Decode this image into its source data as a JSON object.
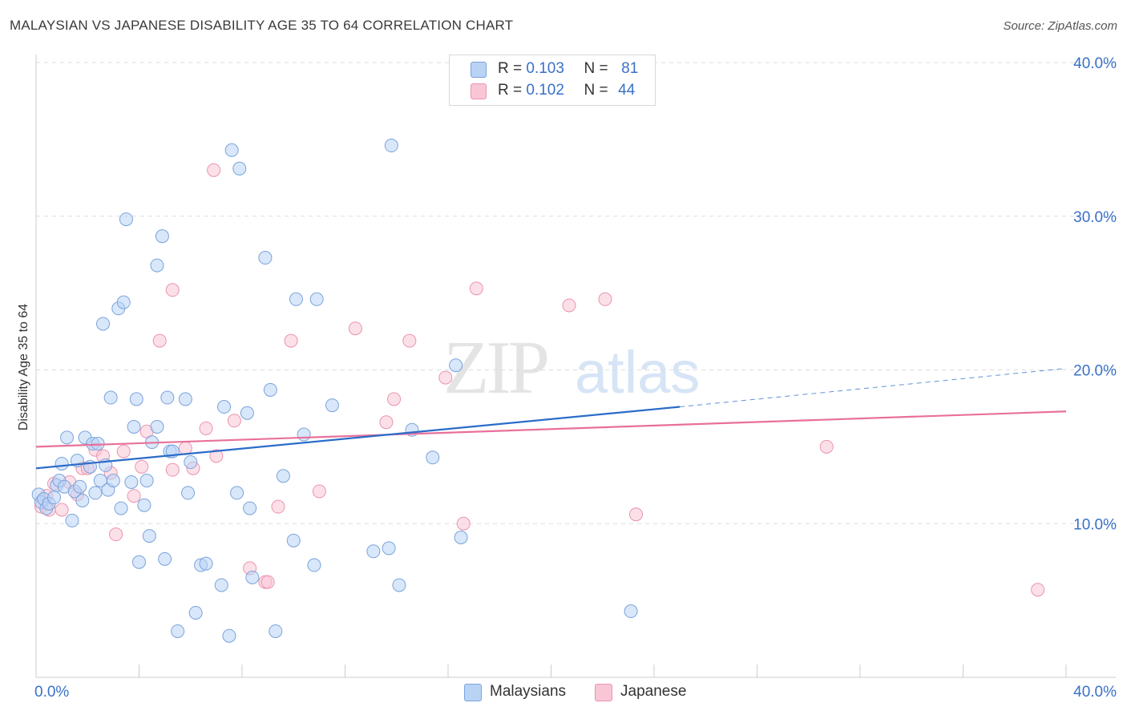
{
  "title": "MALAYSIAN VS JAPANESE DISABILITY AGE 35 TO 64 CORRELATION CHART",
  "source": "Source: ZipAtlas.com",
  "watermark": {
    "zip": "ZIP",
    "atlas": "atlas"
  },
  "legend": {
    "series1": {
      "r_label": "R =",
      "r_value": "0.103",
      "n_label": "N =",
      "n_value": "81"
    },
    "series2": {
      "r_label": "R =",
      "r_value": "0.102",
      "n_label": "N =",
      "n_value": "44"
    }
  },
  "colors": {
    "malaysians_fill": "#b9d3f5",
    "malaysians_stroke": "#7aa3dc",
    "malaysians_line": "#2b6cc9",
    "japanese_fill": "#f9c6d5",
    "japanese_stroke": "#eb93ae",
    "japanese_line": "#e8709a",
    "tick_label": "#3a70c8",
    "grid": "#dddddd"
  },
  "chart_data": {
    "type": "scatter",
    "title": "MALAYSIAN VS JAPANESE DISABILITY AGE 35 TO 64 CORRELATION CHART",
    "xlabel": "",
    "ylabel": "Disability Age 35 to 64",
    "xlim": [
      0,
      40
    ],
    "ylim": [
      0,
      40
    ],
    "x_tick_labels": [
      "0.0%",
      "40.0%"
    ],
    "y_ticks": [
      10,
      20,
      30,
      40
    ],
    "y_tick_labels": [
      "10.0%",
      "20.0%",
      "30.0%",
      "40.0%"
    ],
    "grid": true,
    "legend_position": "top-center",
    "series": [
      {
        "name": "Malaysians",
        "R": 0.103,
        "N": 81,
        "trend": {
          "x0": 0,
          "y0": 13.6,
          "x1": 25,
          "y1": 17.6,
          "dashed_to_x": 40,
          "dashed_to_y": 20.1
        },
        "points": [
          [
            0.1,
            11.9
          ],
          [
            0.2,
            11.4
          ],
          [
            0.3,
            11.6
          ],
          [
            0.4,
            11.0
          ],
          [
            0.5,
            11.3
          ],
          [
            0.7,
            11.7
          ],
          [
            0.8,
            12.5
          ],
          [
            0.9,
            12.8
          ],
          [
            1.0,
            13.9
          ],
          [
            1.1,
            12.4
          ],
          [
            1.2,
            15.6
          ],
          [
            1.4,
            10.2
          ],
          [
            1.5,
            12.1
          ],
          [
            1.6,
            14.1
          ],
          [
            1.7,
            12.4
          ],
          [
            1.8,
            11.5
          ],
          [
            1.9,
            15.6
          ],
          [
            2.1,
            13.7
          ],
          [
            2.2,
            15.2
          ],
          [
            2.3,
            12.0
          ],
          [
            2.4,
            15.2
          ],
          [
            2.5,
            12.8
          ],
          [
            2.6,
            23.0
          ],
          [
            2.7,
            13.8
          ],
          [
            2.8,
            12.2
          ],
          [
            2.9,
            18.2
          ],
          [
            3.0,
            12.8
          ],
          [
            3.2,
            24.0
          ],
          [
            3.3,
            11.0
          ],
          [
            3.4,
            24.4
          ],
          [
            3.5,
            29.8
          ],
          [
            3.7,
            12.7
          ],
          [
            3.8,
            16.3
          ],
          [
            3.9,
            18.1
          ],
          [
            4.0,
            7.5
          ],
          [
            4.2,
            11.2
          ],
          [
            4.3,
            12.8
          ],
          [
            4.4,
            9.2
          ],
          [
            4.5,
            15.3
          ],
          [
            4.7,
            16.3
          ],
          [
            4.7,
            26.8
          ],
          [
            4.9,
            28.7
          ],
          [
            5.0,
            7.7
          ],
          [
            5.1,
            18.2
          ],
          [
            5.2,
            14.7
          ],
          [
            5.3,
            14.7
          ],
          [
            5.5,
            3.0
          ],
          [
            5.8,
            18.1
          ],
          [
            5.9,
            12.0
          ],
          [
            6.0,
            14.0
          ],
          [
            6.2,
            4.2
          ],
          [
            6.4,
            7.3
          ],
          [
            6.6,
            7.4
          ],
          [
            7.2,
            6.0
          ],
          [
            7.3,
            17.6
          ],
          [
            7.5,
            2.7
          ],
          [
            7.6,
            34.3
          ],
          [
            7.8,
            12.0
          ],
          [
            7.9,
            33.1
          ],
          [
            8.2,
            17.2
          ],
          [
            8.3,
            11.0
          ],
          [
            8.4,
            6.5
          ],
          [
            8.9,
            27.3
          ],
          [
            9.1,
            18.7
          ],
          [
            9.3,
            3.0
          ],
          [
            9.6,
            13.1
          ],
          [
            10.0,
            8.9
          ],
          [
            10.1,
            24.6
          ],
          [
            10.4,
            15.8
          ],
          [
            10.8,
            7.3
          ],
          [
            10.9,
            24.6
          ],
          [
            11.5,
            17.7
          ],
          [
            13.1,
            8.2
          ],
          [
            13.7,
            8.4
          ],
          [
            13.8,
            34.6
          ],
          [
            14.1,
            6.0
          ],
          [
            14.6,
            16.1
          ],
          [
            15.4,
            14.3
          ],
          [
            16.5,
            9.1
          ],
          [
            23.1,
            4.3
          ],
          [
            16.3,
            20.3
          ]
        ]
      },
      {
        "name": "Japanese",
        "R": 0.102,
        "N": 44,
        "trend": {
          "x0": 0,
          "y0": 15.0,
          "x1": 40,
          "y1": 17.3
        },
        "points": [
          [
            0.2,
            11.1
          ],
          [
            0.4,
            11.8
          ],
          [
            0.5,
            10.9
          ],
          [
            0.7,
            12.6
          ],
          [
            1.0,
            10.9
          ],
          [
            1.3,
            12.7
          ],
          [
            1.6,
            11.9
          ],
          [
            1.8,
            13.6
          ],
          [
            2.0,
            13.6
          ],
          [
            2.3,
            14.8
          ],
          [
            2.6,
            14.4
          ],
          [
            2.9,
            13.3
          ],
          [
            3.1,
            9.3
          ],
          [
            3.4,
            14.7
          ],
          [
            3.8,
            11.8
          ],
          [
            4.1,
            13.7
          ],
          [
            4.3,
            16.0
          ],
          [
            4.8,
            21.9
          ],
          [
            5.3,
            13.5
          ],
          [
            5.3,
            25.2
          ],
          [
            5.8,
            14.9
          ],
          [
            6.1,
            13.6
          ],
          [
            6.6,
            16.2
          ],
          [
            6.9,
            33.0
          ],
          [
            7.0,
            14.4
          ],
          [
            7.7,
            16.7
          ],
          [
            8.3,
            7.1
          ],
          [
            8.9,
            6.2
          ],
          [
            9.0,
            6.2
          ],
          [
            9.4,
            11.1
          ],
          [
            9.9,
            21.9
          ],
          [
            11.0,
            12.1
          ],
          [
            12.4,
            22.7
          ],
          [
            13.6,
            16.6
          ],
          [
            13.9,
            18.1
          ],
          [
            14.5,
            21.9
          ],
          [
            15.9,
            19.5
          ],
          [
            16.6,
            10.0
          ],
          [
            17.1,
            25.3
          ],
          [
            20.7,
            24.2
          ],
          [
            22.1,
            24.6
          ],
          [
            23.3,
            10.6
          ],
          [
            30.7,
            15.0
          ],
          [
            38.9,
            5.7
          ]
        ]
      }
    ]
  },
  "bottom_legend": {
    "item1": "Malaysians",
    "item2": "Japanese"
  }
}
